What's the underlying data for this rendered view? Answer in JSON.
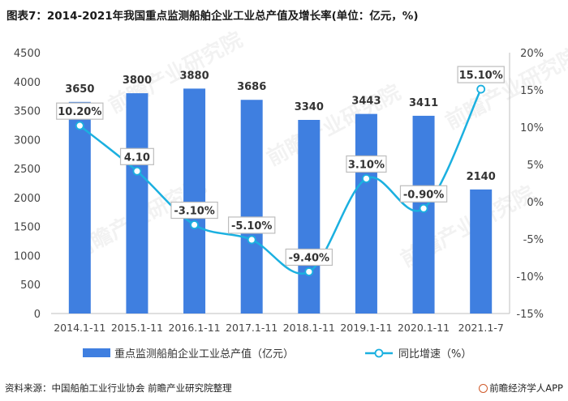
{
  "title": "图表7：2014-2021年我国重点监测船舶企业工业总产值及增长率(单位：亿元，%)",
  "footer": {
    "source": "资料来源：中国船舶工业行业协会 前瞻产业研究院整理",
    "brand": "前瞻经济学人APP"
  },
  "watermark": "前瞻产业研究院",
  "colors": {
    "bar": "#3f7fe0",
    "line": "#1bb0e0",
    "axis": "#bfbfbf"
  },
  "chart_data": {
    "type": "bar+line",
    "categories": [
      "2014.1-11",
      "2015.1-11",
      "2016.1-11",
      "2017.1-11",
      "2018.1-11",
      "2019.1-11",
      "2020.1-11",
      "2021.1-7"
    ],
    "series": [
      {
        "name": "重点监测船舶企业工业总产值（亿元）",
        "type": "bar",
        "axis": "left",
        "values": [
          3650,
          3800,
          3880,
          3686,
          3340,
          3443,
          3411,
          2140
        ],
        "labels": [
          "3650",
          "3800",
          "3880",
          "3686",
          "3340",
          "3443",
          "3411",
          "2140"
        ]
      },
      {
        "name": "同比增速（%）",
        "type": "line",
        "axis": "right",
        "values": [
          10.2,
          4.1,
          -3.1,
          -5.1,
          -9.4,
          3.1,
          -0.9,
          15.1
        ],
        "labels": [
          "10.20%",
          "4.10",
          "-3.10%",
          "-5.10%",
          "-9.40%",
          "3.10%",
          "-0.90%",
          "15.10%"
        ]
      }
    ],
    "left_axis": {
      "min": 0,
      "max": 4500,
      "step": 500,
      "ticks": [
        "0",
        "500",
        "1000",
        "1500",
        "2000",
        "2500",
        "3000",
        "3500",
        "4000",
        "4500"
      ]
    },
    "right_axis": {
      "min": -15,
      "max": 20,
      "step": 5,
      "ticks": [
        "-15%",
        "-10%",
        "-5%",
        "0%",
        "5%",
        "10%",
        "15%",
        "20%"
      ]
    },
    "legend_position": "bottom"
  }
}
